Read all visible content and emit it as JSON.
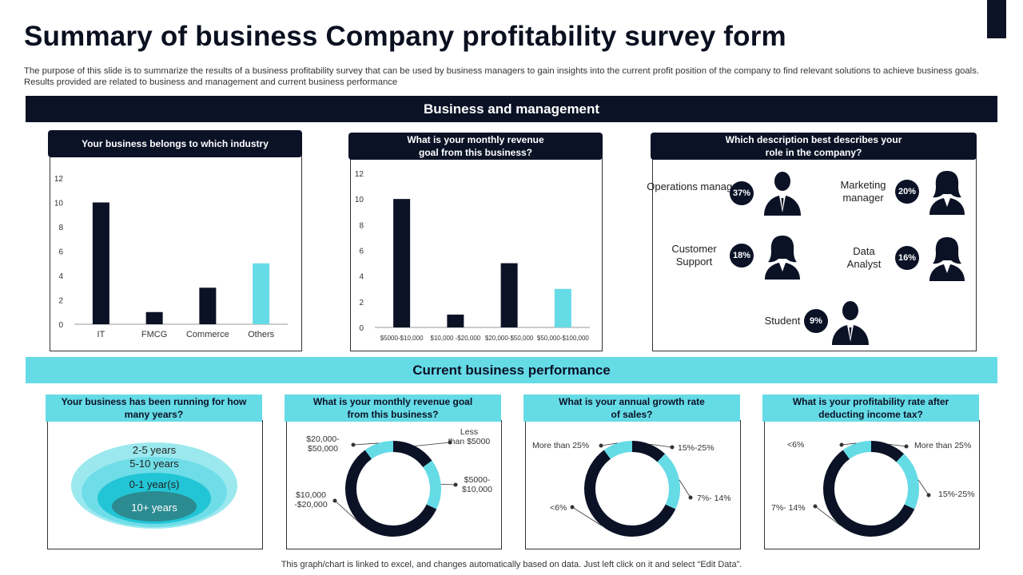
{
  "title": "Summary of business Company profitability survey form",
  "subtitle": "The purpose of this slide is to summarize the results of a business profitability survey that can be used by business managers to gain insights into the current profit position of the company to find relevant solutions to achieve business goals. Results provided are related to business and management and current business performance",
  "sections": {
    "management": "Business and management",
    "performance": "Current business performance"
  },
  "questions": {
    "industry": "Your business belongs to which industry",
    "revenue_goal": "What is your monthly revenue goal from this business?",
    "role": "Which description best describes your role in the company?",
    "years": "Your business has been running for how many years?",
    "revenue_goal_2": "What is your monthly revenue goal from this business?",
    "growth": "What is your annual growth rate of sales?",
    "profitability": "What is your profitability rate after deducting income tax?"
  },
  "roles": [
    {
      "label": "Operations manager",
      "pct": "37%",
      "icon": "male-person-icon"
    },
    {
      "label": "Marketing manager",
      "pct": "20%",
      "icon": "female-person-icon"
    },
    {
      "label": "Customer Support",
      "pct": "18%",
      "icon": "female-person-icon"
    },
    {
      "label": "Data Analyst",
      "pct": "16%",
      "icon": "female-person-icon"
    },
    {
      "label": "Student",
      "pct": "9%",
      "icon": "male-person-icon"
    }
  ],
  "years_layers": [
    "2-5 years",
    "5-10 years",
    "0-1 year(s)",
    "10+ years"
  ],
  "colors": {
    "dark": "#0b1226",
    "accent": "#65dbe6",
    "accent_light": "#9be9ef"
  },
  "footer": "This graph/chart is linked to excel, and changes automatically based on data. Just left click on it and select “Edit Data”.",
  "chart_data": [
    {
      "type": "bar",
      "categories": [
        "IT",
        "FMCG",
        "Commerce",
        "Others"
      ],
      "values": [
        10,
        1,
        3,
        5
      ],
      "highlight": [
        false,
        false,
        false,
        true
      ],
      "ylim": [
        0,
        12
      ],
      "yticks": [
        0,
        2,
        4,
        6,
        8,
        10,
        12
      ]
    },
    {
      "type": "bar",
      "categories": [
        "$5000-$10,000",
        "$10,000 -$20,000",
        "$20,000-$50,000",
        "$50,000-$100,000"
      ],
      "values": [
        10,
        1,
        5,
        3
      ],
      "highlight": [
        false,
        false,
        false,
        true
      ],
      "ylim": [
        0,
        12
      ],
      "yticks": [
        0,
        2,
        4,
        6,
        8,
        10,
        12
      ]
    },
    {
      "type": "pie",
      "donut": true,
      "slices": [
        {
          "label": "Less than $5000",
          "value": 15,
          "color": "#0b1226"
        },
        {
          "label": "$5000- $10,000",
          "value": 17,
          "color": "#65dbe6"
        },
        {
          "label": "$10,000 -$20,000",
          "value": 58,
          "color": "#0b1226"
        },
        {
          "label": "$20,000- $50,000",
          "value": 10,
          "color": "#65dbe6"
        }
      ]
    },
    {
      "type": "pie",
      "donut": true,
      "slices": [
        {
          "label": "15%-25%",
          "value": 12,
          "color": "#0b1226"
        },
        {
          "label": "7%- 14%",
          "value": 20,
          "color": "#65dbe6"
        },
        {
          "label": "<6%",
          "value": 58,
          "color": "#0b1226"
        },
        {
          "label": "More than 25%",
          "value": 10,
          "color": "#65dbe6"
        }
      ]
    },
    {
      "type": "pie",
      "donut": true,
      "slices": [
        {
          "label": "More than 25%",
          "value": 12,
          "color": "#0b1226"
        },
        {
          "label": "15%-25%",
          "value": 20,
          "color": "#65dbe6"
        },
        {
          "label": "7%- 14%",
          "value": 58,
          "color": "#0b1226"
        },
        {
          "label": "<6%",
          "value": 10,
          "color": "#65dbe6"
        }
      ]
    }
  ]
}
